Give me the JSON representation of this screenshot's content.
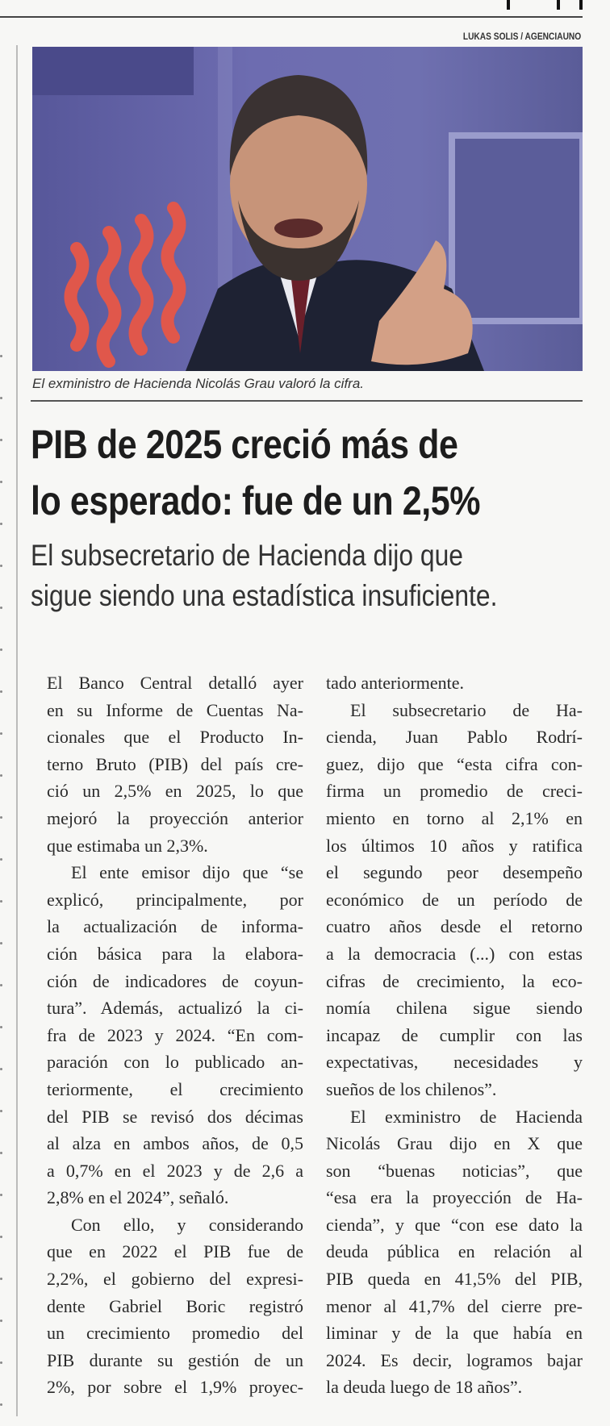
{
  "photo_credit": "LUKAS SOLIS / AGENCIAUNO",
  "caption": "El exministro de Hacienda Nicolás Grau valoró la cifra.",
  "headline": [
    "PIB de 2025 creció más de",
    "lo esperado: fue de un 2,5%"
  ],
  "subheadline": [
    "El subsecretario de Hacienda dijo que",
    "sigue siendo una estadística insuficiente."
  ],
  "body": {
    "left": [
      {
        "indent": false,
        "ends": true,
        "lines": [
          "El Banco Central detalló ayer",
          "en su Informe de Cuentas Na-",
          "cionales que el Producto In-",
          "terno Bruto (PIB) del país cre-",
          "ció un 2,5% en 2025, lo que",
          "mejoró la proyección anterior",
          "que estimaba un 2,3%."
        ]
      },
      {
        "indent": true,
        "ends": true,
        "lines": [
          "El ente emisor dijo que “se",
          "explicó, principalmente, por",
          "la actualización de informa-",
          "ción básica para la elabora-",
          "ción de indicadores de coyun-",
          "tura”. Además, actualizó la ci-",
          "fra de 2023 y 2024. “En com-",
          "paración con lo publicado an-",
          "teriormente, el crecimiento",
          "del PIB se revisó dos décimas",
          "al alza en ambos años, de 0,5",
          "a 0,7% en el 2023 y de 2,6 a",
          "2,8% en el 2024”, señaló."
        ]
      },
      {
        "indent": true,
        "ends": false,
        "lines": [
          "Con ello, y considerando",
          "que en 2022 el PIB fue de",
          "2,2%, el gobierno del expresi-",
          "dente Gabriel Boric registró",
          "un crecimiento promedio del",
          "PIB durante su gestión de un",
          "2%, por sobre el 1,9% proyec-"
        ]
      }
    ],
    "right": [
      {
        "indent": false,
        "ends": true,
        "lines": [
          "tado anteriormente."
        ]
      },
      {
        "indent": true,
        "ends": true,
        "lines": [
          "El subsecretario de Ha-",
          "cienda, Juan Pablo Rodrí-",
          "guez, dijo que “esta cifra con-",
          "firma un promedio de creci-",
          "miento en torno al 2,1% en",
          "los últimos 10 años y ratifica",
          "el segundo peor desempeño",
          "económico de un período de",
          "cuatro años desde el retorno",
          "a la democracia (...) con estas",
          "cifras de crecimiento, la eco-",
          "nomía chilena sigue siendo",
          "incapaz de cumplir con las",
          "expectativas, necesidades y",
          "sueños de los chilenos”."
        ]
      },
      {
        "indent": true,
        "ends": true,
        "lines": [
          "El exministro de Hacienda",
          "Nicolás Grau dijo  en X que",
          "son “buenas noticias”, que",
          "“esa era la proyección de Ha-",
          "cienda”, y que “con ese dato la",
          "deuda pública en relación al",
          "PIB queda en 41,5% del PIB,",
          "menor al 41,7% del cierre pre-",
          "liminar y de la que había en",
          "2024. Es decir, logramos bajar",
          "la deuda luego de 18 años”."
        ]
      }
    ]
  }
}
